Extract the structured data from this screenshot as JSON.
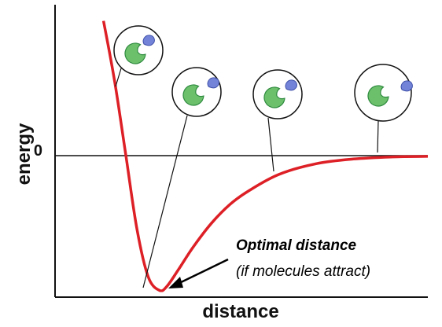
{
  "chart_data": {
    "type": "line",
    "xlabel": "distance",
    "ylabel": "energy",
    "ytick_labels": [
      "0"
    ],
    "grid": false,
    "legend": "none",
    "annotation": {
      "main": "Optimal distance",
      "sub": "(if molecules attract)"
    },
    "series": [
      {
        "color": "#dd1f26",
        "x": [
          0.13,
          0.16,
          0.19,
          0.22,
          0.25,
          0.28,
          0.3,
          0.33,
          0.37,
          0.42,
          0.47,
          0.52,
          0.6,
          0.7,
          0.8,
          0.9,
          1.0
        ],
        "y": [
          1.0,
          0.55,
          0.0,
          -0.55,
          -0.9,
          -1.0,
          -0.97,
          -0.85,
          -0.68,
          -0.5,
          -0.36,
          -0.26,
          -0.14,
          -0.06,
          -0.025,
          -0.01,
          -0.005
        ]
      }
    ],
    "xlim": [
      0,
      1
    ],
    "ylim": [
      -1.05,
      1.12
    ],
    "insets": [
      {
        "at_x": 0.17,
        "state": "bound"
      },
      {
        "at_x": 0.24,
        "state": "near-optimal"
      },
      {
        "at_x": 0.52,
        "state": "approaching"
      },
      {
        "at_x": 0.88,
        "state": "separated"
      }
    ],
    "colors": {
      "curve": "#dd1f26",
      "enzyme_fill": "#6cc06c",
      "enzyme_stroke": "#2e8a3e",
      "ligand_fill": "#7384d8",
      "ligand_stroke": "#3e4fa8",
      "axis": "#111111"
    }
  }
}
